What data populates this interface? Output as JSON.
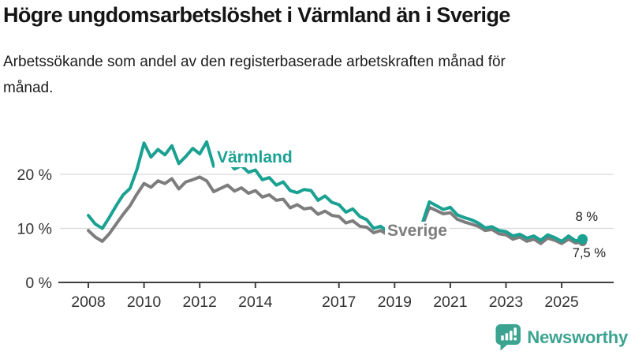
{
  "title": "Högre ungdomsarbetslöshet i Värmland än i Sverige",
  "subtitle": "Arbetssökande som andel av den registerbaserade arbetskraften månad för månad.",
  "branding": {
    "name": "Newsworthy",
    "color": "#3ba390"
  },
  "chart_data": {
    "type": "line",
    "title": "Högre ungdomsarbetslöshet i Värmland än i Sverige",
    "xlabel": "",
    "ylabel": "Arbetssökande som andel av den registerbaserade arbetskraften",
    "x_start": 2008.0,
    "x_step": 0.25,
    "x_end": 2025.75,
    "xlim": [
      2007.0,
      2026.5
    ],
    "ylim": [
      0,
      27.5
    ],
    "grid": "horizontal",
    "xticks": [
      2008,
      2010,
      2012,
      2014,
      2017,
      2019,
      2021,
      2023,
      2025
    ],
    "yticks": [
      {
        "value": 20,
        "label": "20 %"
      },
      {
        "value": 10,
        "label": "10 %"
      },
      {
        "value": 0,
        "label": "0 %"
      }
    ],
    "series": [
      {
        "name": "Värmland",
        "color": "#1aa192",
        "end_label": "8 %",
        "end_value": 8.0,
        "values": [
          12.4,
          10.8,
          10.0,
          12.0,
          14.2,
          16.2,
          17.4,
          21.0,
          25.8,
          23.2,
          24.6,
          23.6,
          25.3,
          22.0,
          23.3,
          24.8,
          23.8,
          26.0,
          21.5,
          22.2,
          22.4,
          21.0,
          21.6,
          20.4,
          20.8,
          19.0,
          19.4,
          18.0,
          18.6,
          17.0,
          16.6,
          17.2,
          17.0,
          15.2,
          16.0,
          14.8,
          14.4,
          13.0,
          13.6,
          12.2,
          11.6,
          10.0,
          10.4,
          9.4,
          10.2,
          9.6,
          10.0,
          10.4,
          11.0,
          14.9,
          14.2,
          13.5,
          13.9,
          12.5,
          12.0,
          11.6,
          11.0,
          10.1,
          10.3,
          9.6,
          9.4,
          8.6,
          8.9,
          8.2,
          8.6,
          7.8,
          8.8,
          8.3,
          7.6,
          8.6,
          7.7,
          8.0
        ]
      },
      {
        "name": "Sverige",
        "color": "#7d7d7d",
        "end_label": "7,5 %",
        "end_value": 7.5,
        "values": [
          9.6,
          8.4,
          7.6,
          9.0,
          10.8,
          12.6,
          14.2,
          16.4,
          18.3,
          17.6,
          18.8,
          18.3,
          19.2,
          17.3,
          18.6,
          19.0,
          19.5,
          18.8,
          16.8,
          17.4,
          18.0,
          16.9,
          17.5,
          16.5,
          17.0,
          15.8,
          16.2,
          15.2,
          15.4,
          13.8,
          14.4,
          13.6,
          13.8,
          12.6,
          13.2,
          12.4,
          12.2,
          11.0,
          11.4,
          10.4,
          10.2,
          9.2,
          9.6,
          8.8,
          9.6,
          9.0,
          9.5,
          10.0,
          10.6,
          13.9,
          13.3,
          12.7,
          12.9,
          11.7,
          11.2,
          10.8,
          10.4,
          9.6,
          9.8,
          9.0,
          8.8,
          8.0,
          8.4,
          7.6,
          8.0,
          7.2,
          8.2,
          7.8,
          7.2,
          8.0,
          7.3,
          7.5
        ]
      }
    ]
  }
}
